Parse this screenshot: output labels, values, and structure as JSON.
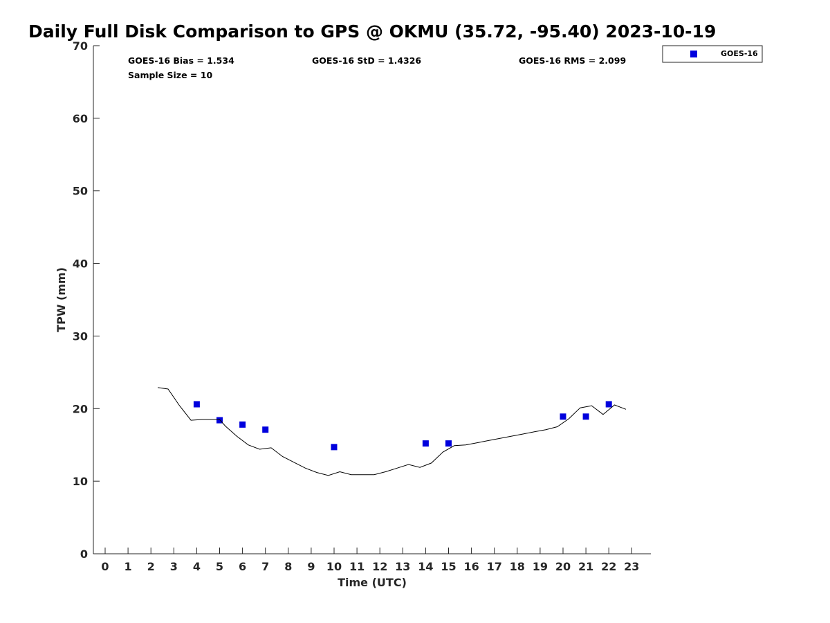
{
  "chart_data": {
    "type": "scatter",
    "title": "Daily Full Disk Comparison to GPS @ OKMU (35.72, -95.40) 2023-10-19",
    "xlabel": "Time (UTC)",
    "ylabel": "TPW (mm)",
    "xlim": [
      -0.5,
      23.8
    ],
    "ylim": [
      0,
      70
    ],
    "x_ticks": [
      "0",
      "1",
      "2",
      "3",
      "4",
      "5",
      "6",
      "7",
      "8",
      "9",
      "10",
      "11",
      "12",
      "13",
      "14",
      "15",
      "16",
      "17",
      "18",
      "19",
      "20",
      "21",
      "22",
      "23"
    ],
    "y_ticks": [
      "0",
      "10",
      "20",
      "30",
      "40",
      "50",
      "60",
      "70"
    ],
    "grid": false,
    "legend_position": "top-right, outside plot",
    "stats": {
      "bias": "GOES-16 Bias = 1.534",
      "std": "GOES-16 StD = 1.4326",
      "rms": "GOES-16 RMS = 2.099",
      "sample_size": "Sample Size = 10"
    },
    "series": [
      {
        "name": "GOES-16",
        "style": "markers",
        "color": "#0000dd",
        "x": [
          4.0,
          5.0,
          6.0,
          7.0,
          10.0,
          14.0,
          15.0,
          20.0,
          21.0,
          22.0
        ],
        "y": [
          20.6,
          18.4,
          17.8,
          17.1,
          14.7,
          15.2,
          15.2,
          18.9,
          18.9,
          20.6
        ]
      },
      {
        "name": "",
        "style": "line",
        "color": "#000000",
        "x": [
          2.3,
          2.75,
          3.25,
          3.75,
          4.25,
          4.75,
          5.0,
          5.25,
          5.75,
          6.25,
          6.75,
          7.25,
          7.75,
          8.25,
          8.75,
          9.25,
          9.75,
          10.25,
          10.75,
          11.25,
          11.75,
          12.25,
          12.75,
          13.25,
          13.75,
          14.25,
          14.75,
          15.25,
          15.75,
          16.25,
          16.75,
          17.25,
          17.75,
          18.25,
          18.75,
          19.25,
          19.75,
          20.25,
          20.75,
          21.25,
          21.75,
          22.25,
          22.75
        ],
        "y": [
          22.9,
          22.7,
          20.4,
          18.4,
          18.5,
          18.5,
          18.5,
          17.6,
          16.2,
          15.0,
          14.4,
          14.6,
          13.4,
          12.6,
          11.8,
          11.2,
          10.8,
          11.3,
          10.9,
          10.9,
          10.9,
          11.3,
          11.8,
          12.3,
          11.9,
          12.5,
          14.0,
          14.9,
          15.0,
          15.3,
          15.6,
          15.9,
          16.2,
          16.5,
          16.8,
          17.1,
          17.5,
          18.6,
          20.1,
          20.4,
          19.2,
          20.5,
          19.9
        ]
      }
    ]
  }
}
